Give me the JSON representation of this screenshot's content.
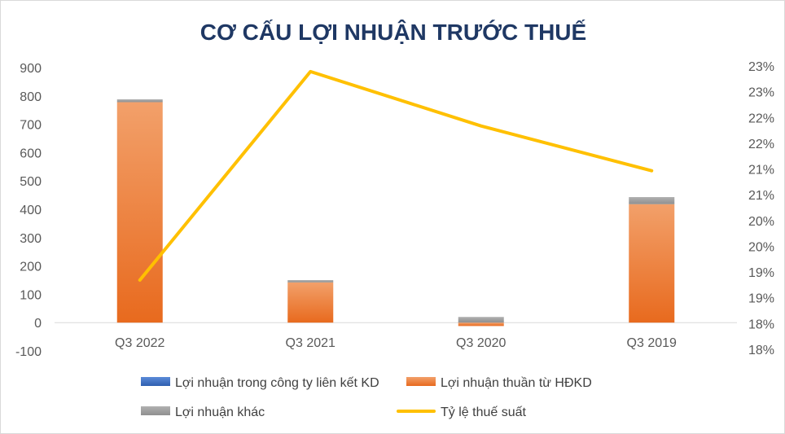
{
  "chart_data": {
    "type": "bar",
    "title": "CƠ CẤU LỢI NHUẬN TRƯỚC THUẾ",
    "categories": [
      "Q3 2022",
      "Q3 2021",
      "Q3 2020",
      "Q3 2019"
    ],
    "y_ticks": [
      "900",
      "800",
      "700",
      "600",
      "500",
      "400",
      "300",
      "200",
      "100",
      "0",
      "-100"
    ],
    "y_right_ticks": [
      "23%",
      "23%",
      "22%",
      "22%",
      "21%",
      "21%",
      "20%",
      "20%",
      "19%",
      "19%",
      "18%",
      "18%"
    ],
    "ylim": [
      -100,
      900
    ],
    "y2lim": [
      0.18,
      0.23
    ],
    "stacked": true,
    "series": [
      {
        "name": "Lợi nhuận trong công ty liên kết KD",
        "type": "bar",
        "color": "#4472c4",
        "values": [
          0,
          0,
          0,
          0
        ]
      },
      {
        "name": "Lợi nhuận thuần từ HĐKD",
        "type": "bar",
        "color": "#ed7d31",
        "values": [
          778,
          142,
          -12,
          418
        ]
      },
      {
        "name": "Lợi nhuận khác",
        "type": "bar",
        "color": "#a5a5a5",
        "values": [
          10,
          8,
          20,
          25
        ]
      },
      {
        "name": "Tỷ lệ thuế suất",
        "type": "line",
        "axis": "right",
        "color": "#ffc000",
        "values": [
          0.1925,
          0.2293,
          0.2197,
          0.2118
        ]
      }
    ],
    "legend": [
      {
        "label": "Lợi nhuận trong công ty liên kết KD",
        "marker": "bar",
        "color": "#4472c4"
      },
      {
        "label": "Lợi nhuận thuần từ HĐKD",
        "marker": "bar",
        "color": "#ed7d31"
      },
      {
        "label": "Lợi nhuận khác",
        "marker": "bar",
        "color": "#a5a5a5"
      },
      {
        "label": "Tỷ lệ thuế suất",
        "marker": "line",
        "color": "#ffc000"
      }
    ],
    "legend_position": "bottom",
    "grid": false
  }
}
